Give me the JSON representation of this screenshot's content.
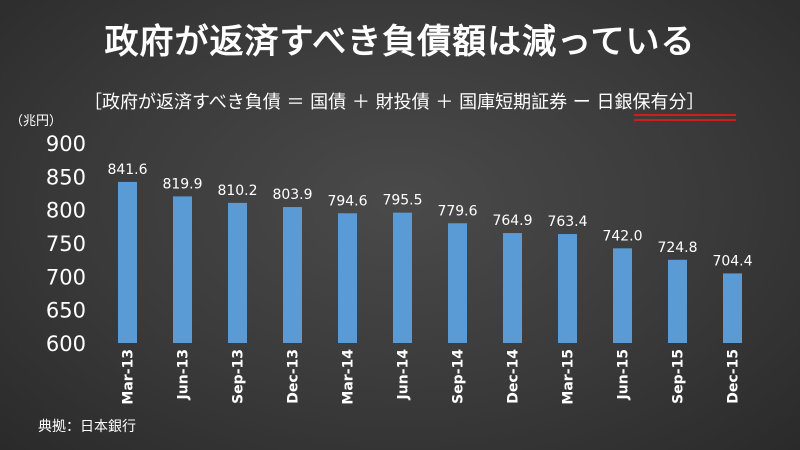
{
  "title": "政府が返済すべき負債額は減っている",
  "subtitle": {
    "main": "［政府が返済すべき負債 ＝ 国債 ＋ 財投債 ＋ 国庫短期証券 ー ",
    "highlight": "日銀保有分",
    "close": "］"
  },
  "unit": "（兆円）",
  "source": "典拠：日本銀行",
  "colors": {
    "bar": "#5b9bd5",
    "underline": "#c81f1f"
  },
  "chart_data": {
    "type": "bar",
    "categories": [
      "Mar-13",
      "Jun-13",
      "Sep-13",
      "Dec-13",
      "Mar-14",
      "Jun-14",
      "Sep-14",
      "Dec-14",
      "Mar-15",
      "Jun-15",
      "Sep-15",
      "Dec-15"
    ],
    "values": [
      841.6,
      819.9,
      810.2,
      803.9,
      794.6,
      795.5,
      779.6,
      764.9,
      763.4,
      742.0,
      724.8,
      704.4
    ],
    "value_labels": [
      "841.6",
      "819.9",
      "810.2",
      "803.9",
      "794.6",
      "795.5",
      "779.6",
      "764.9",
      "763.4",
      "742.0",
      "724.8",
      "704.4"
    ],
    "ylim": [
      600,
      900
    ],
    "yticks": [
      600,
      650,
      700,
      750,
      800,
      850,
      900
    ],
    "grid": false,
    "legend": "none"
  }
}
